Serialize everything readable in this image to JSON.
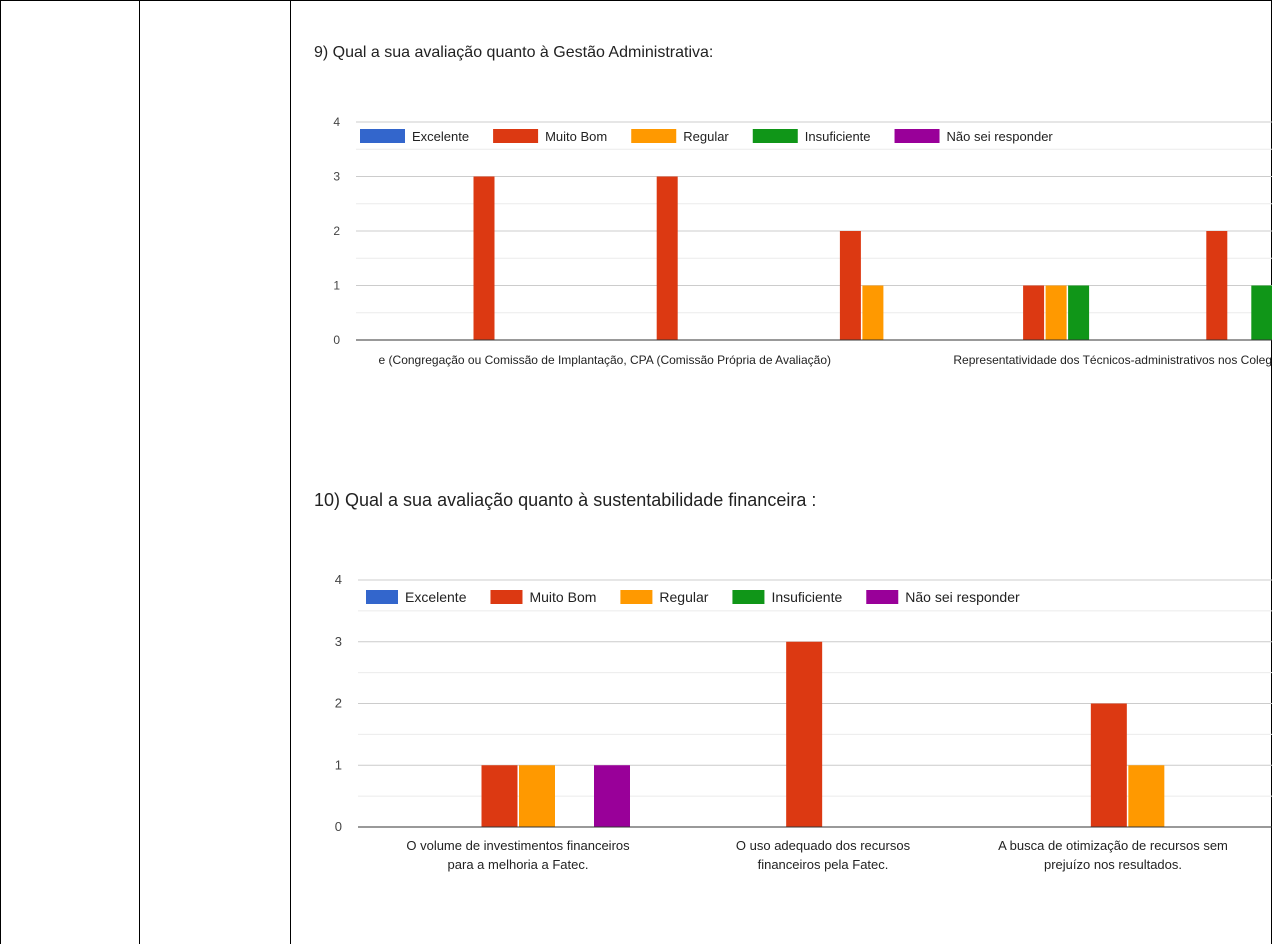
{
  "colors": {
    "excelente": "#3366cc",
    "muito_bom": "#dc3912",
    "regular": "#ff9900",
    "insuficiente": "#109618",
    "nao_sei": "#990099",
    "gridline": "#cccccc",
    "baseline": "#333333"
  },
  "chart_data": [
    {
      "type": "bar",
      "title": "9) Qual a sua avaliação quanto à Gestão Administrativa:",
      "xlabel": "",
      "ylabel": "",
      "ylim": [
        0,
        4
      ],
      "yticks": [
        "0",
        "1",
        "2",
        "3",
        "4"
      ],
      "grid": true,
      "legend_position": "top-left",
      "categories": [
        "",
        "",
        "",
        "",
        ""
      ],
      "visible_category_labels": [
        "e (Congregação ou Comissão de Implantação, CPA (Comissão Própria de Avaliação)",
        "Representatividade dos Técnicos-administrativos nos Coleg"
      ],
      "series": [
        {
          "name": "Excelente",
          "values": [
            0,
            0,
            0,
            0,
            0
          ]
        },
        {
          "name": "Muito Bom",
          "values": [
            3,
            3,
            2,
            1,
            2
          ]
        },
        {
          "name": "Regular",
          "values": [
            0,
            0,
            1,
            1,
            0
          ]
        },
        {
          "name": "Insuficiente",
          "values": [
            0,
            0,
            0,
            1,
            1
          ]
        },
        {
          "name": "Não sei responder",
          "values": [
            0,
            0,
            0,
            0,
            0
          ]
        }
      ]
    },
    {
      "type": "bar",
      "title": "10) Qual a sua avaliação quanto à sustentabilidade financeira :",
      "xlabel": "",
      "ylabel": "",
      "ylim": [
        0,
        4
      ],
      "yticks": [
        "0",
        "1",
        "2",
        "3",
        "4"
      ],
      "grid": true,
      "legend_position": "top-left",
      "categories": [
        "O volume de investimentos financeiros para a melhoria a Fatec.",
        "O uso adequado dos recursos financeiros pela Fatec.",
        "A busca de otimização de recursos sem prejuízo nos resultados."
      ],
      "category_lines": [
        [
          "O volume de investimentos financeiros",
          "para a melhoria a Fatec."
        ],
        [
          "O uso adequado dos recursos",
          "financeiros pela Fatec."
        ],
        [
          "A busca de otimização de recursos sem",
          "prejuízo nos resultados."
        ]
      ],
      "series": [
        {
          "name": "Excelente",
          "values": [
            0,
            0,
            0
          ]
        },
        {
          "name": "Muito Bom",
          "values": [
            1,
            3,
            2
          ]
        },
        {
          "name": "Regular",
          "values": [
            1,
            0,
            1
          ]
        },
        {
          "name": "Insuficiente",
          "values": [
            0,
            0,
            0
          ]
        },
        {
          "name": "Não sei responder",
          "values": [
            1,
            0,
            0
          ]
        }
      ]
    }
  ]
}
